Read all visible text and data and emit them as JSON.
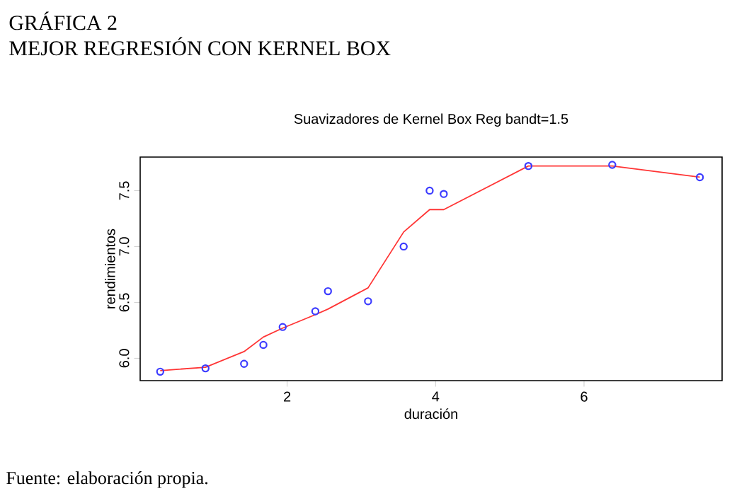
{
  "chart_data": {
    "type": "scatter",
    "title": "Suavizadores de Kernel Box Reg bandt=1.5",
    "xlabel": "duración",
    "ylabel": "rendimientos",
    "annotations": [
      "GRÁFICA 2",
      "MEJOR REGRESIÓN CON KERNEL BOX",
      "Fuente: elaboración propia."
    ],
    "xlim": [
      0.02,
      7.86
    ],
    "ylim": [
      5.8,
      7.8
    ],
    "xticks": [
      2,
      4,
      6
    ],
    "yticks": [
      {
        "value": 6,
        "label": "6.0"
      },
      {
        "value": 6.5,
        "label": "6.5"
      },
      {
        "value": 7,
        "label": "7.0"
      },
      {
        "value": 7.5,
        "label": "7.5"
      }
    ],
    "series": [
      {
        "type": "scatter",
        "marker": "circle",
        "color": "#3b3bff",
        "x": [
          0.29,
          0.9,
          1.42,
          1.68,
          1.94,
          2.38,
          2.55,
          3.09,
          3.57,
          3.92,
          4.11,
          5.25,
          6.38,
          7.56
        ],
        "values": [
          5.88,
          5.91,
          5.95,
          6.12,
          6.28,
          6.42,
          6.6,
          6.51,
          7.0,
          7.5,
          7.47,
          7.72,
          7.73,
          7.62
        ]
      },
      {
        "type": "line",
        "marker": "none",
        "color": "#ff3535",
        "x": [
          0.29,
          0.9,
          1.42,
          1.68,
          1.94,
          2.38,
          2.55,
          3.09,
          3.57,
          3.92,
          4.11,
          5.25,
          6.38,
          7.56
        ],
        "values": [
          5.89,
          5.92,
          6.06,
          6.19,
          6.27,
          6.39,
          6.44,
          6.63,
          7.13,
          7.33,
          7.33,
          7.72,
          7.72,
          7.62
        ]
      }
    ]
  }
}
